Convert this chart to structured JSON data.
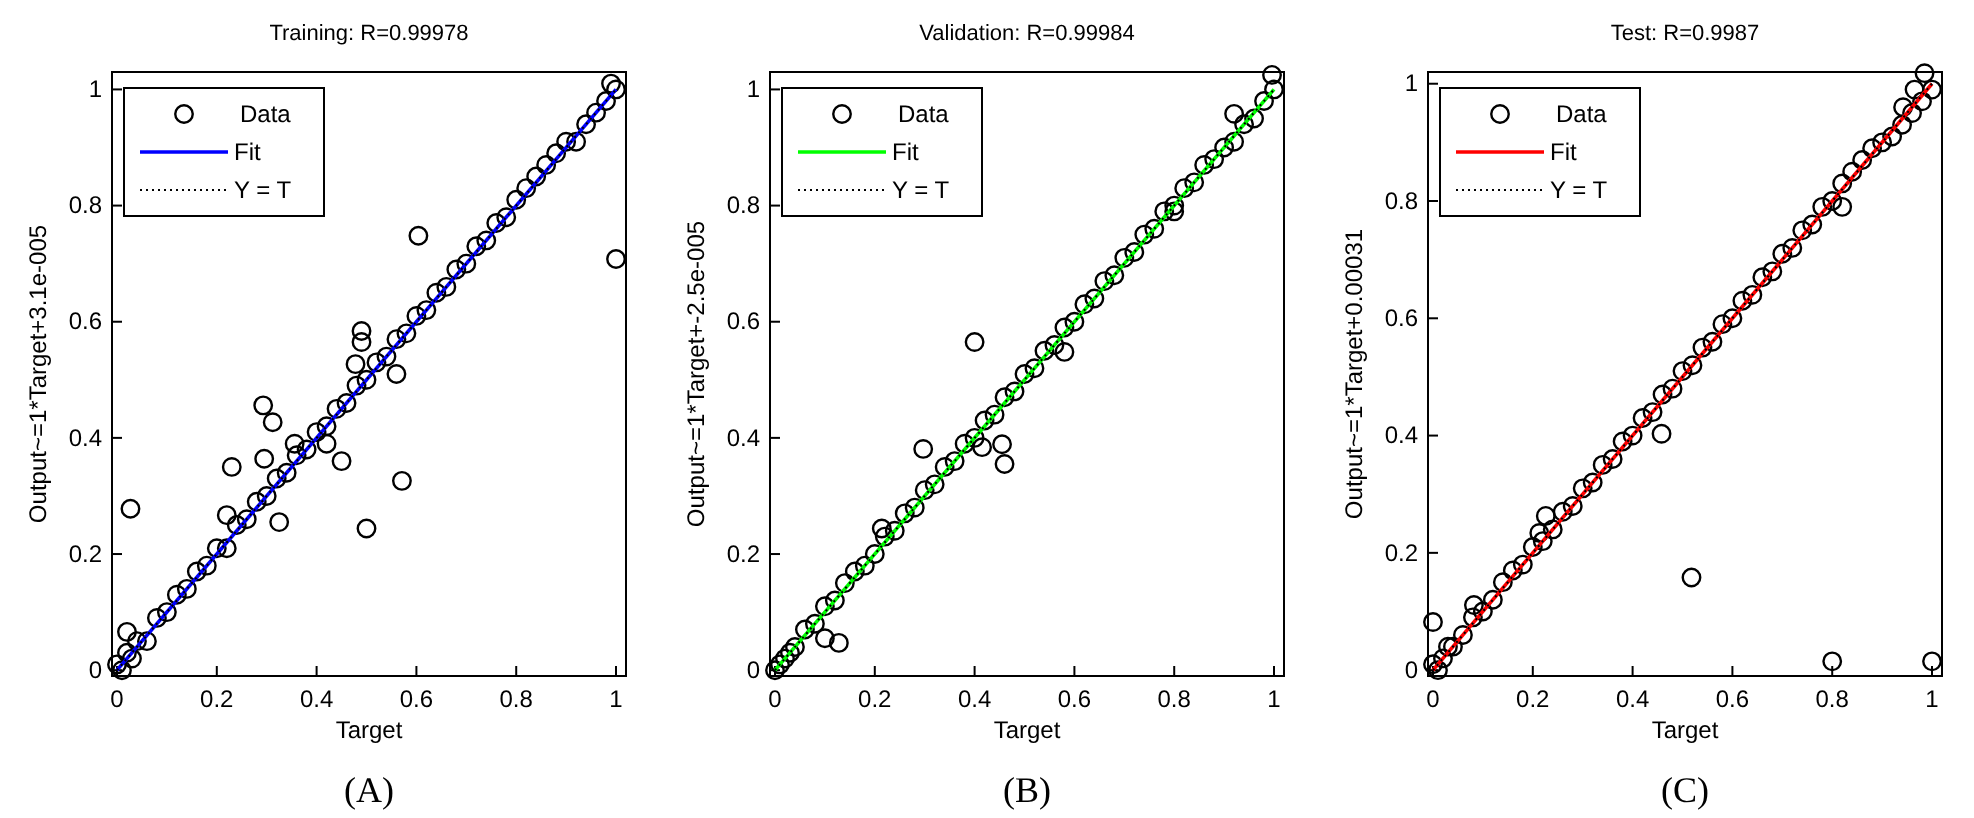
{
  "chart_data": [
    {
      "type": "scatter",
      "title": "Training: R=0.99978",
      "xlabel": "Target",
      "ylabel": "Output~=1*Target+3.1e-005",
      "annotations": [
        "(A)"
      ],
      "xlim": [
        -0.01,
        1.02
      ],
      "ylim": [
        -0.01,
        1.03
      ],
      "xticks": [
        0,
        0.2,
        0.4,
        0.6,
        0.8,
        1
      ],
      "yticks": [
        0,
        0.2,
        0.4,
        0.6,
        0.8,
        1
      ],
      "legend": "top left",
      "series": [
        {
          "name": "Data",
          "marker": "circle",
          "color": "#000000",
          "x": [
            0,
            0.01,
            0.02,
            0.03,
            0.04,
            0.06,
            0.08,
            0.1,
            0.12,
            0.14,
            0.16,
            0.18,
            0.2,
            0.22,
            0.24,
            0.26,
            0.28,
            0.3,
            0.32,
            0.34,
            0.36,
            0.38,
            0.4,
            0.42,
            0.44,
            0.46,
            0.48,
            0.5,
            0.52,
            0.54,
            0.56,
            0.58,
            0.6,
            0.62,
            0.64,
            0.66,
            0.68,
            0.7,
            0.72,
            0.74,
            0.76,
            0.78,
            0.8,
            0.82,
            0.84,
            0.86,
            0.88,
            0.9,
            0.92,
            0.94,
            0.96,
            0.98,
            0.99,
            1.0,
            0.027,
            0.23,
            0.293,
            0.312,
            0.295,
            0.325,
            0.22,
            0.45,
            0.5,
            0.571,
            0.56,
            0.49,
            0.49,
            0.478,
            0.604,
            1.0,
            0.356,
            0.42,
            0.02
          ],
          "values": [
            0.01,
            0.0,
            0.03,
            0.02,
            0.05,
            0.05,
            0.09,
            0.1,
            0.13,
            0.14,
            0.17,
            0.18,
            0.21,
            0.21,
            0.25,
            0.26,
            0.29,
            0.3,
            0.33,
            0.34,
            0.37,
            0.38,
            0.41,
            0.42,
            0.45,
            0.46,
            0.49,
            0.5,
            0.53,
            0.54,
            0.57,
            0.58,
            0.61,
            0.62,
            0.65,
            0.66,
            0.69,
            0.7,
            0.73,
            0.74,
            0.77,
            0.78,
            0.81,
            0.83,
            0.85,
            0.87,
            0.89,
            0.91,
            0.91,
            0.94,
            0.96,
            0.98,
            1.01,
            1.0,
            0.278,
            0.35,
            0.456,
            0.427,
            0.364,
            0.255,
            0.267,
            0.36,
            0.244,
            0.326,
            0.51,
            0.584,
            0.565,
            0.527,
            0.748,
            0.708,
            0.39,
            0.39,
            0.066
          ]
        },
        {
          "name": "Fit",
          "type": "line",
          "color": "#0000ff",
          "x": [
            0,
            1
          ],
          "values": [
            0,
            1
          ]
        },
        {
          "name": "Y = T",
          "type": "line",
          "color": "#000000",
          "line_style": "dotted",
          "x": [
            0,
            1
          ],
          "values": [
            0,
            1
          ]
        }
      ]
    },
    {
      "type": "scatter",
      "title": "Validation: R=0.99984",
      "xlabel": "Target",
      "ylabel": "Output~=1*Target+-2.5e-005",
      "annotations": [
        "(B)"
      ],
      "xlim": [
        -0.01,
        1.02
      ],
      "ylim": [
        -0.01,
        1.03
      ],
      "xticks": [
        0,
        0.2,
        0.4,
        0.6,
        0.8,
        1
      ],
      "yticks": [
        0,
        0.2,
        0.4,
        0.6,
        0.8,
        1
      ],
      "legend": "top left",
      "series": [
        {
          "name": "Data",
          "marker": "circle",
          "color": "#000000",
          "x": [
            0,
            0.01,
            0.02,
            0.03,
            0.04,
            0.06,
            0.08,
            0.1,
            0.12,
            0.14,
            0.16,
            0.18,
            0.2,
            0.22,
            0.24,
            0.26,
            0.28,
            0.3,
            0.32,
            0.34,
            0.36,
            0.38,
            0.4,
            0.42,
            0.44,
            0.46,
            0.48,
            0.5,
            0.52,
            0.54,
            0.56,
            0.58,
            0.6,
            0.62,
            0.64,
            0.66,
            0.68,
            0.7,
            0.72,
            0.74,
            0.76,
            0.78,
            0.8,
            0.82,
            0.84,
            0.86,
            0.88,
            0.9,
            0.92,
            0.94,
            0.96,
            0.98,
            1.0,
            0.4,
            0.297,
            0.455,
            0.46,
            0.415,
            0.1,
            0.128,
            0.92,
            0.996,
            0.214,
            0.8,
            0.58
          ],
          "values": [
            0.0,
            0.01,
            0.02,
            0.03,
            0.04,
            0.07,
            0.08,
            0.11,
            0.12,
            0.15,
            0.17,
            0.18,
            0.2,
            0.23,
            0.24,
            0.27,
            0.28,
            0.31,
            0.32,
            0.35,
            0.36,
            0.39,
            0.4,
            0.43,
            0.44,
            0.47,
            0.48,
            0.51,
            0.52,
            0.55,
            0.56,
            0.59,
            0.6,
            0.63,
            0.64,
            0.67,
            0.68,
            0.71,
            0.72,
            0.75,
            0.76,
            0.79,
            0.8,
            0.83,
            0.84,
            0.87,
            0.88,
            0.9,
            0.91,
            0.94,
            0.95,
            0.98,
            1.0,
            0.565,
            0.381,
            0.389,
            0.355,
            0.384,
            0.055,
            0.047,
            0.958,
            1.025,
            0.244,
            0.79,
            0.548
          ]
        },
        {
          "name": "Fit",
          "type": "line",
          "color": "#00ff00",
          "x": [
            0,
            1
          ],
          "values": [
            0,
            1
          ]
        },
        {
          "name": "Y = T",
          "type": "line",
          "color": "#000000",
          "line_style": "dotted",
          "x": [
            0,
            1
          ],
          "values": [
            0,
            1
          ]
        }
      ]
    },
    {
      "type": "scatter",
      "title": "Test: R=0.9987",
      "xlabel": "Target",
      "ylabel": "Output~=1*Target+0.00031",
      "annotations": [
        "(C)"
      ],
      "xlim": [
        -0.01,
        1.02
      ],
      "ylim": [
        -0.01,
        1.02
      ],
      "xticks": [
        0,
        0.2,
        0.4,
        0.6,
        0.8,
        1
      ],
      "yticks": [
        0,
        0.2,
        0.4,
        0.6,
        0.8,
        1
      ],
      "legend": "top left",
      "series": [
        {
          "name": "Data",
          "marker": "circle",
          "color": "#000000",
          "x": [
            0,
            0.01,
            0.02,
            0.03,
            0.04,
            0.06,
            0.08,
            0.1,
            0.12,
            0.14,
            0.16,
            0.18,
            0.2,
            0.22,
            0.24,
            0.26,
            0.28,
            0.3,
            0.32,
            0.34,
            0.36,
            0.38,
            0.4,
            0.42,
            0.44,
            0.46,
            0.48,
            0.5,
            0.52,
            0.54,
            0.56,
            0.58,
            0.6,
            0.62,
            0.64,
            0.66,
            0.68,
            0.7,
            0.72,
            0.74,
            0.76,
            0.78,
            0.8,
            0.82,
            0.84,
            0.86,
            0.88,
            0.9,
            0.92,
            0.94,
            0.96,
            0.98,
            1.0,
            0.0,
            0.518,
            0.8,
            1.0,
            0.458,
            0.226,
            0.213,
            0.082,
            0.985,
            0.965,
            0.942,
            0.82
          ],
          "values": [
            0.01,
            0.0,
            0.02,
            0.04,
            0.04,
            0.06,
            0.09,
            0.1,
            0.12,
            0.15,
            0.17,
            0.18,
            0.21,
            0.22,
            0.24,
            0.27,
            0.28,
            0.31,
            0.32,
            0.35,
            0.36,
            0.39,
            0.4,
            0.43,
            0.44,
            0.47,
            0.48,
            0.51,
            0.52,
            0.55,
            0.56,
            0.59,
            0.6,
            0.63,
            0.64,
            0.67,
            0.68,
            0.71,
            0.72,
            0.75,
            0.76,
            0.79,
            0.8,
            0.83,
            0.85,
            0.87,
            0.89,
            0.9,
            0.91,
            0.93,
            0.95,
            0.97,
            0.99,
            0.082,
            0.158,
            0.015,
            0.015,
            0.403,
            0.263,
            0.234,
            0.111,
            1.018,
            0.99,
            0.96,
            0.79
          ]
        },
        {
          "name": "Fit",
          "type": "line",
          "color": "#ff0000",
          "x": [
            0,
            1
          ],
          "values": [
            0,
            1
          ]
        },
        {
          "name": "Y = T",
          "type": "line",
          "color": "#000000",
          "line_style": "dotted",
          "x": [
            0,
            1
          ],
          "values": [
            0,
            1
          ]
        }
      ]
    }
  ]
}
